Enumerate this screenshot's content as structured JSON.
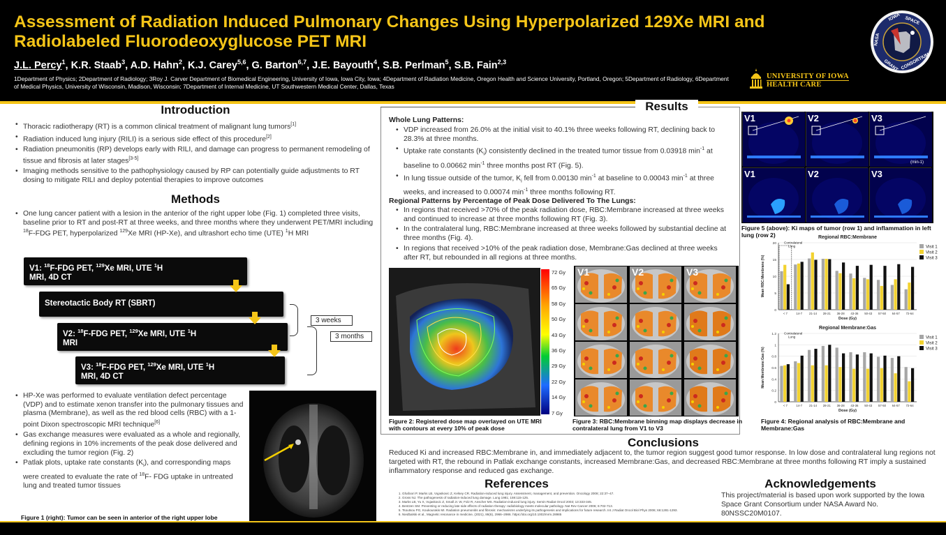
{
  "header": {
    "title": "Assessment of Radiation Induced Pulmonary Changes Using Hyperpolarized 129Xe MRI and Radiolabeled Fluorodeoxyglucose PET MRI",
    "authors": [
      {
        "name": "J.L. Percy",
        "sup": "1"
      },
      {
        "name": "K.R. Staab",
        "sup": "3"
      },
      {
        "name": "A.D. Hahn",
        "sup": "2"
      },
      {
        "name": "K.J. Carey",
        "sup": "5,6"
      },
      {
        "name": "G. Barton",
        "sup": "6,7"
      },
      {
        "name": "J.E. Bayouth",
        "sup": "4"
      },
      {
        "name": "S.B. Perlman",
        "sup": "5"
      },
      {
        "name": "S.B. Fain",
        "sup": "2,3"
      }
    ],
    "affiliations": "1Department of Physics; 2Department of Radiology; 3Roy J. Carver Department of Biomedical Engineering, University of Iowa, Iowa City, Iowa; 4Department of Radiation Medicine, Oregon Health and Science University, Portland, Oregon; 5Department of Radiology, 6Department of Medical Physics, University of Wisconsin, Madison, Wisconsin; 7Department of Internal Medicine, UT Southwestern Medical Center, Dallas, Texas",
    "uiowa_line1": "UNIVERSITY OF IOWA",
    "uiowa_line2": "HEALTH CARE",
    "seal_text": [
      "IOWA",
      "SPACE",
      "GRANT",
      "CONSORTIUM",
      "NASA"
    ]
  },
  "intro": {
    "title": "Introduction",
    "bullets": [
      "Thoracic radiotherapy (RT) is a common clinical treatment of malignant lung tumors[1]",
      "Radiation induced lung injury (RILI) is a serious side effect of this procedure[2]",
      "Radiation pneumonitis (RP) develops early with RILI, and damage can progress to permanent remodeling of tissue and fibrosis at later stages[3-5]",
      "Imaging methods sensitive to the pathophysiology caused by RP can potentially guide adjustments to RT dosing to mitigate RILI and deploy potential therapies to improve outcomes"
    ]
  },
  "methods": {
    "title": "Methods",
    "bullet1": "One lung cancer patient with a lesion in the anterior of the right upper lobe (Fig. 1) completed three visits, baseline prior to RT and post-RT at three weeks, and three months where they underwent PET/MRI including 18F-FDG PET, hyperpolarized 129Xe MRI (HP-Xe), and ultrashort echo time (UTE) 1H MRI",
    "flow": [
      "V1: 18F-FDG PET, 129Xe MRI, UTE 1H MRI, 4D CT",
      "Stereotactic Body RT (SBRT)",
      "V2: 18F-FDG PET, 129Xe MRI, UTE 1H MRI",
      "V3: 18F-FDG PET, 129Xe MRI, UTE 1H MRI, 4D CT"
    ],
    "interval1": "3 weeks",
    "interval2": "3 months",
    "bullets2": [
      "HP-Xe was performed to evaluate ventilation defect percentage (VDP) and to estimate xenon transfer into the pulmonary tissues and plasma (Membrane), as well as the red blood cells (RBC) with a 1-point Dixon spectroscopic MRI technique[6]",
      "Gas exchange measures were evaluated as a whole and regionally, defining regions in 10% increments of the peak dose delivered and excluding the tumor region (Fig. 2)",
      "Patlak plots, uptake rate constants (Ki), and corresponding maps were created to evaluate the rate of 18F- FDG uptake in untreated lung and treated tumor tissues"
    ],
    "fig1_caption": "Figure 1 (right): Tumor can be seen in anterior of the right upper lobe"
  },
  "results": {
    "title": "Results",
    "whole_head": "Whole Lung Patterns:",
    "whole_bullets": [
      "VDP increased from 26.0% at the initial visit to 40.1% three weeks following RT, declining back to 28.3% at three months.",
      "Uptake rate constants (Ki) consistently declined in the treated tumor tissue from 0.03918 min-1 at baseline to 0.00662 min-1 three months post RT (Fig. 5).",
      "In lung tissue outside of the tumor, Ki fell from 0.00130 min-1 at baseline to 0.00043 min-1 at three weeks, and increased to 0.00074 min-1 three months following RT."
    ],
    "regional_head": "Regional Patterns by Percentage of Peak Dose Delivered To The Lungs:",
    "regional_bullets": [
      "In regions that received >70% of the peak radiation dose, RBC:Membrane increased at three weeks and continued to increase at three months following RT (Fig. 3).",
      "In the contralateral lung, RBC:Membrane increased at three weeks followed by substantial decline at three months (Fig. 4).",
      "In regions that received >10% of the peak radiation dose, Membrane:Gas declined at three weeks after RT, but rebounded in all regions at three months."
    ],
    "fig2_caption": "Figure 2: Registered dose map overlayed on UTE MRI with contours at every 10% of peak dose",
    "fig2_scale": [
      "72 Gy",
      "65 Gy",
      "58 Gy",
      "50 Gy",
      "43 Gy",
      "36 Gy",
      "29 Gy",
      "22 Gy",
      "14 Gy",
      "7 Gy"
    ],
    "fig3_caption": "Figure 3: RBC:Membrane binning map displays decrease in contralateral lung from V1 to V3",
    "fig3_cols": [
      "V1",
      "V2",
      "V3"
    ],
    "fig5_caption": "Figure 5 (above): Ki maps of tumor (row 1) and inflammation in left lung (row 2)",
    "fig5_labels": [
      "V1",
      "V2",
      "V3",
      "V1",
      "V2",
      "V3"
    ],
    "fig5_unit": "(min-1)",
    "fig4_caption": "Figure 4: Regional analysis of RBC:Membrane and Membrane:Gas",
    "contralateral_label": "Contralateral Lung"
  },
  "chart_data": [
    {
      "type": "bar",
      "title": "Regional RBC:Membrane",
      "xlabel": "Dose (Gy)",
      "ylabel": "Mean RBC:Membrane (%)",
      "ylim": [
        0,
        20
      ],
      "yticks": [
        "0",
        "5",
        "10",
        "15",
        "20"
      ],
      "categories": [
        "< 7",
        "14-7",
        "21-14",
        "28-21",
        "36-28",
        "43-36",
        "50-43",
        "57-50",
        "64-57",
        "72-64"
      ],
      "series": [
        {
          "name": "Visit 1",
          "color": "#a6a6a6",
          "values": [
            11.5,
            13.5,
            15.3,
            15.2,
            11.6,
            10.8,
            9.5,
            8.9,
            7.4,
            6.1
          ]
        },
        {
          "name": "Visit 2",
          "color": "#f2d230",
          "values": [
            13.4,
            13.8,
            17.1,
            15.2,
            10.9,
            9.4,
            9.1,
            7.1,
            9.1,
            8.1
          ]
        },
        {
          "name": "Visit 3",
          "color": "#111111",
          "values": [
            7.6,
            14.3,
            14.9,
            15.1,
            14.1,
            13.1,
            13.4,
            13.1,
            13.6,
            12.8
          ]
        }
      ]
    },
    {
      "type": "bar",
      "title": "Regional Membrane:Gas",
      "xlabel": "Dose (Gy)",
      "ylabel": "Mean Membrane:Gas (%)",
      "ylim": [
        0,
        1.2
      ],
      "yticks": [
        "0",
        "0.2",
        "0.4",
        "0.6",
        "0.8",
        "1",
        "1.2"
      ],
      "categories": [
        "< 7",
        "14-7",
        "21-14",
        "28-21",
        "36-28",
        "43-36",
        "50-43",
        "57-50",
        "64-57",
        "72-64"
      ],
      "series": [
        {
          "name": "Visit 1",
          "color": "#a6a6a6",
          "values": [
            0.63,
            0.71,
            0.91,
            0.98,
            0.95,
            0.87,
            0.87,
            0.79,
            0.77,
            0.61
          ]
        },
        {
          "name": "Visit 2",
          "color": "#f2d230",
          "values": [
            0.64,
            0.68,
            0.64,
            0.64,
            0.61,
            0.58,
            0.58,
            0.59,
            0.5,
            0.36
          ]
        },
        {
          "name": "Visit 3",
          "color": "#111111",
          "values": [
            0.66,
            0.81,
            0.93,
            1.0,
            0.85,
            0.83,
            0.85,
            0.81,
            0.8,
            0.59
          ]
        }
      ]
    }
  ],
  "conclusions": {
    "title": "Conclusions",
    "text": "Reduced Ki and increased RBC:Membrane in, and immediately adjacent to, the tumor region suggest good tumor response. In low dose and contralateral lung regions not targeted with RT, the rebound in Patlak exchange constants, increased Membrane:Gas, and decreased RBC:Membrane at three months following RT imply a sustained inflammatory response and reduced gas exchange."
  },
  "references": {
    "title": "References",
    "items": [
      "Ghafoori P, Marks LB, Vujaskovic Z, Kelsey CR. Radiation-induced lung injury. Assessment, management, and prevention. Oncology 2008; 22:37–47.",
      "Gross NJ. The pathogenesis of radiation-induced lung damage. Lung 1981; 159:115-125.",
      "Marks LB, Yu X, Vujaskovic Z, Small Jr. W, Folz R, Anscher MS. Radiation-induced lung injury. Semin Radiat Oncol 2003; 13:333-345.",
      "Bentzen SM. Preventing or reducing late side effects of radiation therapy: radiobiology meets molecular pathology. Nat Rev Cancer 2006; 6:702-713.",
      "Tsoutsou PG, Koukourakis MI. Radiation pneumonitis and fibrosis: mechanisms underlying its pathogenesis and implications for future research. Int J Radiat Oncol Biol Phys 2006; 66:1281-1293.",
      "Niedbalski et al., Magnetic resonance in medicine, (2021), 86(6), 2966–2986. https://doi.org/10.1002/mrm.28985"
    ]
  },
  "acknowledgements": {
    "title": "Acknowledgements",
    "text": "This project/material is based upon work supported by the Iowa Space Grant Consortium under NASA Award No. 80NSSC20M0107."
  }
}
